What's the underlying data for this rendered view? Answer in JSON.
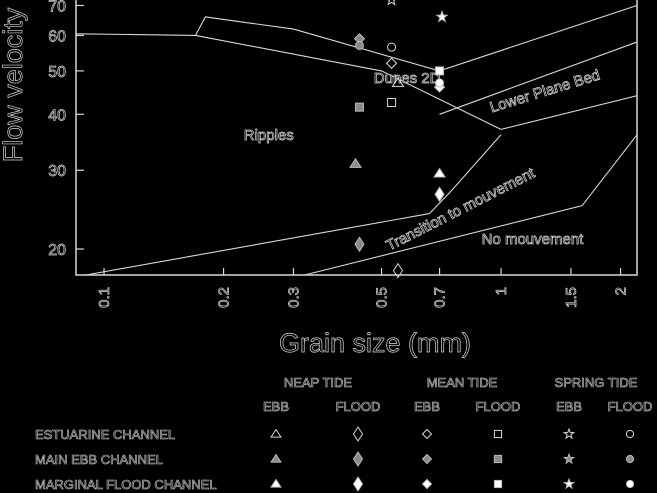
{
  "chart_data": {
    "type": "scatter",
    "title": "",
    "xlabel": "Grain size (mm)",
    "ylabel": "Flow velocity",
    "xscale": "log",
    "yscale": "log",
    "xlim": [
      0.085,
      2.2
    ],
    "ylim": [
      17.5,
      72
    ],
    "xticks": [
      "0.1",
      "0.2",
      "0.3",
      "0.5",
      "0.7",
      "1",
      "1.5",
      "2"
    ],
    "yticks": [
      "20",
      "30",
      "40",
      "50",
      "60",
      "70"
    ],
    "region_labels": [
      {
        "text": "Ripples",
        "x": 0.26,
        "y": 35
      },
      {
        "text": "Dunes 2D",
        "x": 0.58,
        "y": 47
      },
      {
        "text": "Lower Plane Bed",
        "x": 1.3,
        "y": 44
      },
      {
        "text": "Transition to mouvement",
        "x": 0.8,
        "y": 24
      },
      {
        "text": "No mouvement",
        "x": 1.2,
        "y": 20.5
      }
    ],
    "boundaries": [
      {
        "name": "ripples-upper",
        "points": [
          [
            0.085,
            60.5
          ],
          [
            0.17,
            60
          ],
          [
            0.5,
            50
          ],
          [
            1.0,
            37
          ]
        ]
      },
      {
        "name": "dunes-lower",
        "points": [
          [
            0.17,
            60
          ],
          [
            0.18,
            66
          ],
          [
            0.3,
            62
          ],
          [
            0.7,
            50
          ],
          [
            2.2,
            70
          ]
        ]
      },
      {
        "name": "lower-plane-bed-upper",
        "points": [
          [
            0.7,
            40
          ],
          [
            2.2,
            58
          ]
        ]
      },
      {
        "name": "lower-plane-bed-lower",
        "points": [
          [
            1.0,
            37
          ],
          [
            2.2,
            44
          ]
        ]
      },
      {
        "name": "transition-upper",
        "points": [
          [
            0.09,
            17.5
          ],
          [
            0.66,
            24
          ],
          [
            0.75,
            27
          ],
          [
            1.0,
            36
          ]
        ]
      },
      {
        "name": "transition-lower",
        "points": [
          [
            0.32,
            17.5
          ],
          [
            1.6,
            25
          ],
          [
            2.2,
            36
          ]
        ]
      }
    ],
    "series": [
      {
        "name": "Estuarine Channel - Neap Ebb",
        "marker": "triangle",
        "fill": "none",
        "points": [
          [
            0.55,
            47
          ]
        ]
      },
      {
        "name": "Estuarine Channel - Neap Flood",
        "marker": "diamond-tall",
        "fill": "none",
        "points": [
          [
            0.55,
            17.9
          ]
        ]
      },
      {
        "name": "Estuarine Channel - Mean Ebb",
        "marker": "diamond",
        "fill": "none",
        "points": [
          [
            0.53,
            52
          ]
        ]
      },
      {
        "name": "Estuarine Channel - Mean Flood",
        "marker": "square",
        "fill": "none",
        "points": [
          [
            0.53,
            42.5
          ]
        ]
      },
      {
        "name": "Estuarine Channel - Spring Ebb",
        "marker": "star",
        "fill": "none",
        "points": [
          [
            0.53,
            72
          ]
        ]
      },
      {
        "name": "Estuarine Channel - Spring Flood",
        "marker": "circle",
        "fill": "none",
        "points": [
          [
            0.53,
            56.5
          ]
        ]
      },
      {
        "name": "Main Ebb Channel - Neap Ebb",
        "marker": "triangle",
        "fill": "gray",
        "points": [
          [
            0.43,
            31
          ]
        ]
      },
      {
        "name": "Main Ebb Channel - Neap Flood",
        "marker": "diamond-tall",
        "fill": "gray",
        "points": [
          [
            0.44,
            20.5
          ]
        ]
      },
      {
        "name": "Main Ebb Channel - Mean Ebb",
        "marker": "diamond",
        "fill": "gray",
        "points": [
          [
            0.44,
            59
          ]
        ]
      },
      {
        "name": "Main Ebb Channel - Mean Flood",
        "marker": "square",
        "fill": "gray",
        "points": [
          [
            0.44,
            41.5
          ]
        ]
      },
      {
        "name": "Main Ebb Channel - Spring Ebb",
        "marker": "star",
        "fill": "gray",
        "points": []
      },
      {
        "name": "Main Ebb Channel - Spring Flood",
        "marker": "circle",
        "fill": "gray",
        "points": [
          [
            0.44,
            57
          ]
        ]
      },
      {
        "name": "Marginal Flood Channel - Neap Ebb",
        "marker": "triangle",
        "fill": "white",
        "points": [
          [
            0.7,
            29.5
          ]
        ]
      },
      {
        "name": "Marginal Flood Channel - Neap Flood",
        "marker": "diamond-tall",
        "fill": "white",
        "points": [
          [
            0.7,
            26.5
          ]
        ]
      },
      {
        "name": "Marginal Flood Channel - Mean Ebb",
        "marker": "diamond",
        "fill": "white",
        "points": [
          [
            0.7,
            46
          ]
        ]
      },
      {
        "name": "Marginal Flood Channel - Mean Flood",
        "marker": "square",
        "fill": "white",
        "points": [
          [
            0.7,
            50
          ]
        ]
      },
      {
        "name": "Marginal Flood Channel - Spring Ebb",
        "marker": "star",
        "fill": "white",
        "points": [
          [
            0.71,
            66
          ]
        ]
      },
      {
        "name": "Marginal Flood Channel - Spring Flood",
        "marker": "circle",
        "fill": "white",
        "points": [
          [
            0.7,
            47
          ]
        ]
      }
    ],
    "legend": {
      "groups": [
        "NEAP TIDE",
        "MEAN TIDE",
        "SPRING TIDE"
      ],
      "columns": [
        "EBB",
        "FLOOD",
        "EBB",
        "FLOOD",
        "EBB",
        "FLOOD"
      ],
      "rows": [
        "ESTUARINE CHANNEL",
        "MAIN EBB CHANNEL",
        "MARGINAL FLOOD CHANNEL"
      ],
      "markers": [
        "triangle",
        "diamond-tall",
        "diamond",
        "square",
        "star",
        "circle"
      ],
      "fills": [
        "none",
        "gray",
        "white"
      ],
      "position": "bottom"
    },
    "grid": false
  },
  "colors": {
    "background": "#000000",
    "line": "#d8d8d8",
    "gray_fill": "#8a8a8a",
    "white_fill": "#ffffff"
  }
}
